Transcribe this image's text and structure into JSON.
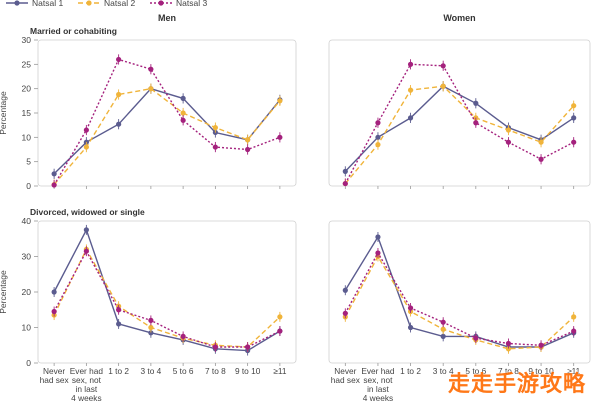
{
  "legend": {
    "entries": [
      {
        "name": "Natsal 1",
        "color": "#5b5c8f",
        "dash": "solid",
        "marker": "circle"
      },
      {
        "name": "Natsal 2",
        "color": "#f0b43a",
        "dash": "dash",
        "marker": "circle"
      },
      {
        "name": "Natsal 3",
        "color": "#a4217d",
        "dash": "dot",
        "marker": "circle"
      }
    ]
  },
  "chart_data": [
    {
      "type": "line",
      "panel": "Men / Married or cohabiting",
      "column_title": "Men",
      "row_label": "Married or cohabiting",
      "ylabel": "Percentage",
      "xlabel": "",
      "categories": [
        "Never had sex",
        "Ever had sex, not in last 4 weeks",
        "1 to 2",
        "3 to 4",
        "5 to 6",
        "7 to 8",
        "9 to 10",
        "≥11"
      ],
      "ylim": [
        0,
        30
      ],
      "yticks": [
        0,
        5,
        10,
        15,
        20,
        25,
        30
      ],
      "series": [
        {
          "name": "Natsal 1",
          "values": [
            2.5,
            9,
            12.7,
            20,
            18,
            11,
            9.5,
            17.7
          ]
        },
        {
          "name": "Natsal 2",
          "values": [
            0.3,
            8,
            18.8,
            20,
            15,
            12,
            9.5,
            17.5
          ]
        },
        {
          "name": "Natsal 3",
          "values": [
            0.2,
            11.5,
            26,
            24,
            13.5,
            8,
            7.5,
            10
          ]
        }
      ]
    },
    {
      "type": "line",
      "panel": "Women / Married or cohabiting",
      "column_title": "Women",
      "row_label": "",
      "ylabel": "",
      "xlabel": "",
      "categories": [
        "Never had sex",
        "Ever had sex, not in last 4 weeks",
        "1 to 2",
        "3 to 4",
        "5 to 6",
        "7 to 8",
        "9 to 10",
        "≥11"
      ],
      "ylim": [
        0,
        30
      ],
      "yticks": [
        0,
        5,
        10,
        15,
        20,
        25,
        30
      ],
      "series": [
        {
          "name": "Natsal 1",
          "values": [
            3,
            10,
            14,
            20.5,
            17,
            12,
            9.5,
            14
          ]
        },
        {
          "name": "Natsal 2",
          "values": [
            0.5,
            8.5,
            19.7,
            20.5,
            14,
            11.5,
            9,
            16.5
          ]
        },
        {
          "name": "Natsal 3",
          "values": [
            0.5,
            13,
            25,
            24.7,
            13,
            9,
            5.5,
            9
          ]
        }
      ]
    },
    {
      "type": "line",
      "panel": "Men / Divorced, widowed or single",
      "column_title": "",
      "row_label": "Divorced, widowed or single",
      "ylabel": "Percentage",
      "xlabel": "",
      "categories": [
        "Never had sex",
        "Ever had sex, not in last 4 weeks",
        "1 to 2",
        "3 to 4",
        "5 to 6",
        "7 to 8",
        "9 to 10",
        "≥11"
      ],
      "ylim": [
        0,
        40
      ],
      "yticks": [
        0,
        10,
        20,
        30,
        40
      ],
      "series": [
        {
          "name": "Natsal 1",
          "values": [
            20,
            37.5,
            11,
            8.5,
            6.5,
            4,
            3.5,
            9
          ]
        },
        {
          "name": "Natsal 2",
          "values": [
            13.5,
            32,
            16,
            10,
            7,
            5,
            4.5,
            13
          ]
        },
        {
          "name": "Natsal 3",
          "values": [
            14.5,
            31.5,
            15,
            12,
            7.5,
            4.5,
            4.5,
            9
          ]
        }
      ]
    },
    {
      "type": "line",
      "panel": "Women / Divorced, widowed or single",
      "column_title": "",
      "row_label": "",
      "ylabel": "",
      "xlabel": "",
      "categories": [
        "Never had sex",
        "Ever had sex, not in last 4 weeks",
        "1 to 2",
        "3 to 4",
        "5 to 6",
        "7 to 8",
        "9 to 10",
        "≥11"
      ],
      "ylim": [
        0,
        40
      ],
      "yticks": [
        0,
        10,
        20,
        30,
        40
      ],
      "series": [
        {
          "name": "Natsal 1",
          "values": [
            20.5,
            35.5,
            10,
            7.5,
            7.5,
            4.5,
            4.5,
            8.5
          ]
        },
        {
          "name": "Natsal 2",
          "values": [
            13,
            30,
            14.5,
            9.5,
            6.5,
            4,
            4.5,
            13
          ]
        },
        {
          "name": "Natsal 3",
          "values": [
            14,
            31,
            15.5,
            11.5,
            7,
            5.5,
            5,
            9
          ]
        }
      ]
    }
  ],
  "x_tick_lines": {
    "Never had sex": [
      "Never",
      "had sex"
    ],
    "Ever had sex, not in last 4 weeks": [
      "Ever had",
      "sex, not",
      "in last",
      "4 weeks"
    ],
    "1 to 2": [
      "1 to 2"
    ],
    "3 to 4": [
      "3 to 4"
    ],
    "5 to 6": [
      "5 to 6"
    ],
    "7 to 8": [
      "7 to 8"
    ],
    "9 to 10": [
      "9 to 10"
    ],
    "≥11": [
      "≥11"
    ]
  },
  "watermark": "走走手游攻略"
}
